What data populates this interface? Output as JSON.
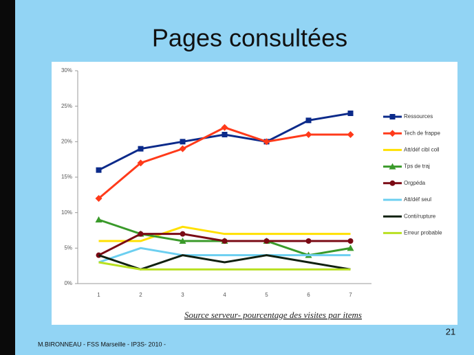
{
  "slide": {
    "title": "Pages consultées",
    "page_number": "21",
    "footer": "M.BIRONNEAU - FSS Marseille - IP3S- 2010 -"
  },
  "chart_data": {
    "type": "line",
    "caption": "Source serveur- pourcentage des visites par items",
    "categories": [
      "1",
      "2",
      "3",
      "4",
      "5",
      "6",
      "7"
    ],
    "ylim": [
      0,
      30
    ],
    "yticks": [
      {
        "value": 0,
        "label": "0%"
      },
      {
        "value": 5,
        "label": "5%"
      },
      {
        "value": 10,
        "label": "10%"
      },
      {
        "value": 15,
        "label": "15%"
      },
      {
        "value": 20,
        "label": "20%"
      },
      {
        "value": 25,
        "label": "25%"
      },
      {
        "value": 30,
        "label": "30%"
      }
    ],
    "grid": false,
    "legend": "right",
    "series": [
      {
        "name": "Ressources",
        "color": "#0b2a8a",
        "marker": "square",
        "values": [
          16,
          19,
          20,
          21,
          20,
          23,
          24
        ]
      },
      {
        "name": "Tech de frappe",
        "color": "#ff3a1a",
        "marker": "diamond",
        "values": [
          12,
          17,
          19,
          22,
          20,
          21,
          21
        ]
      },
      {
        "name": "Att/déf cibl coll",
        "color": "#ffe000",
        "marker": "none",
        "values": [
          6,
          6,
          8,
          7,
          7,
          7,
          7
        ]
      },
      {
        "name": "Tps de traj",
        "color": "#3a9a2a",
        "marker": "triangle",
        "values": [
          9,
          7,
          6,
          6,
          6,
          4,
          5
        ]
      },
      {
        "name": "Orgpéda",
        "color": "#7a0a14",
        "marker": "circle",
        "values": [
          4,
          7,
          7,
          6,
          6,
          6,
          6
        ]
      },
      {
        "name": "Att/déf seul",
        "color": "#6ccff0",
        "marker": "none",
        "values": [
          3,
          5,
          4,
          4,
          4,
          4,
          4
        ]
      },
      {
        "name": "Conti/rupture",
        "color": "#102010",
        "marker": "none",
        "values": [
          4,
          2,
          4,
          3,
          4,
          3,
          2
        ]
      },
      {
        "name": "Erreur probable",
        "color": "#b8e020",
        "marker": "none",
        "values": [
          3,
          2,
          2,
          2,
          2,
          2,
          2
        ]
      }
    ]
  }
}
